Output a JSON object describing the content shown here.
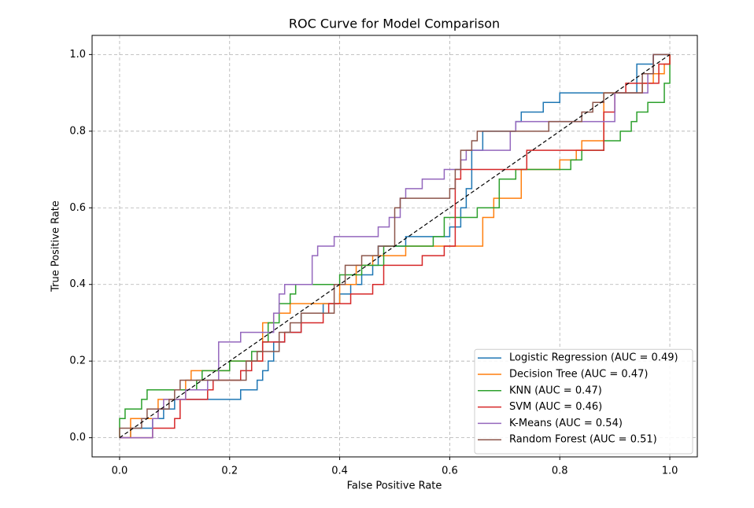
{
  "chart_data": {
    "type": "line",
    "title": "ROC Curve for Model Comparison",
    "x_label": "False Positive Rate",
    "y_label": "True Positive Rate",
    "xlim": [
      -0.05,
      1.05
    ],
    "ylim": [
      -0.05,
      1.05
    ],
    "xticks": [
      {
        "value": 0,
        "label": "0.0"
      },
      0.2,
      0.4,
      0.6,
      0.8,
      {
        "value": 1,
        "label": "1.0"
      }
    ],
    "yticks": [
      {
        "value": 0,
        "label": "0.0"
      },
      0.2,
      0.4,
      0.6,
      0.8,
      {
        "value": 1,
        "label": "1.0"
      }
    ],
    "grid": true,
    "legend": "lower right",
    "reference_line": {
      "x": [
        0,
        1
      ],
      "values": [
        0,
        1
      ],
      "color": "#000000",
      "dashed": true
    },
    "series": [
      {
        "name": "Logistic Regression (AUC = 0.49)",
        "color": "#1f77b4",
        "x": [
          0,
          0.02,
          0.02,
          0.06,
          0.06,
          0.08,
          0.08,
          0.1,
          0.1,
          0.22,
          0.22,
          0.25,
          0.25,
          0.26,
          0.26,
          0.27,
          0.27,
          0.28,
          0.28,
          0.3,
          0.3,
          0.33,
          0.33,
          0.37,
          0.37,
          0.4,
          0.4,
          0.42,
          0.42,
          0.44,
          0.44,
          0.46,
          0.46,
          0.47,
          0.47,
          0.52,
          0.52,
          0.6,
          0.6,
          0.62,
          0.62,
          0.63,
          0.63,
          0.64,
          0.64,
          0.66,
          0.66,
          0.72,
          0.72,
          0.73,
          0.73,
          0.77,
          0.77,
          0.8,
          0.8,
          0.94,
          0.94,
          0.97,
          0.97,
          1
        ],
        "values": [
          0,
          0,
          0.025,
          0.025,
          0.05,
          0.05,
          0.075,
          0.075,
          0.1,
          0.1,
          0.125,
          0.125,
          0.15,
          0.15,
          0.175,
          0.175,
          0.2,
          0.2,
          0.25,
          0.25,
          0.275,
          0.275,
          0.325,
          0.325,
          0.35,
          0.35,
          0.375,
          0.375,
          0.4,
          0.4,
          0.425,
          0.425,
          0.45,
          0.45,
          0.5,
          0.5,
          0.525,
          0.525,
          0.55,
          0.55,
          0.6,
          0.6,
          0.65,
          0.65,
          0.75,
          0.75,
          0.8,
          0.8,
          0.825,
          0.825,
          0.85,
          0.85,
          0.875,
          0.875,
          0.9,
          0.9,
          0.975,
          0.975,
          1,
          1
        ]
      },
      {
        "name": "Decision Tree (AUC = 0.47)",
        "color": "#ff7f0e",
        "x": [
          0,
          0.02,
          0.02,
          0.07,
          0.07,
          0.12,
          0.12,
          0.13,
          0.13,
          0.2,
          0.2,
          0.26,
          0.26,
          0.28,
          0.28,
          0.31,
          0.31,
          0.4,
          0.4,
          0.43,
          0.43,
          0.46,
          0.46,
          0.52,
          0.52,
          0.66,
          0.66,
          0.68,
          0.68,
          0.73,
          0.73,
          0.8,
          0.8,
          0.83,
          0.83,
          0.84,
          0.84,
          0.88,
          0.88,
          0.95,
          0.95,
          0.97,
          0.97,
          0.99,
          0.99,
          1,
          1
        ],
        "values": [
          0,
          0,
          0.05,
          0.05,
          0.1,
          0.1,
          0.15,
          0.15,
          0.175,
          0.175,
          0.2,
          0.2,
          0.3,
          0.3,
          0.325,
          0.325,
          0.35,
          0.35,
          0.4,
          0.4,
          0.45,
          0.45,
          0.475,
          0.475,
          0.5,
          0.5,
          0.575,
          0.575,
          0.625,
          0.625,
          0.7,
          0.7,
          0.725,
          0.725,
          0.75,
          0.75,
          0.775,
          0.775,
          0.9,
          0.9,
          0.925,
          0.925,
          0.95,
          0.95,
          0.975,
          0.975,
          1
        ]
      },
      {
        "name": "KNN (AUC = 0.47)",
        "color": "#2ca02c",
        "x": [
          0,
          0,
          0.01,
          0.01,
          0.04,
          0.04,
          0.05,
          0.05,
          0.14,
          0.14,
          0.15,
          0.15,
          0.2,
          0.2,
          0.24,
          0.24,
          0.26,
          0.26,
          0.27,
          0.27,
          0.29,
          0.29,
          0.31,
          0.31,
          0.32,
          0.32,
          0.4,
          0.4,
          0.44,
          0.44,
          0.48,
          0.48,
          0.57,
          0.57,
          0.59,
          0.59,
          0.65,
          0.65,
          0.69,
          0.69,
          0.72,
          0.72,
          0.82,
          0.82,
          0.84,
          0.84,
          0.88,
          0.88,
          0.91,
          0.91,
          0.93,
          0.93,
          0.94,
          0.94,
          0.96,
          0.96,
          0.99,
          0.99,
          1,
          1
        ],
        "values": [
          0,
          0.05,
          0.05,
          0.075,
          0.075,
          0.1,
          0.1,
          0.125,
          0.125,
          0.15,
          0.15,
          0.175,
          0.175,
          0.2,
          0.2,
          0.225,
          0.225,
          0.25,
          0.25,
          0.3,
          0.3,
          0.35,
          0.35,
          0.375,
          0.375,
          0.4,
          0.4,
          0.425,
          0.425,
          0.45,
          0.45,
          0.5,
          0.5,
          0.525,
          0.525,
          0.575,
          0.575,
          0.6,
          0.6,
          0.675,
          0.675,
          0.7,
          0.7,
          0.725,
          0.725,
          0.75,
          0.75,
          0.775,
          0.775,
          0.8,
          0.8,
          0.825,
          0.825,
          0.85,
          0.85,
          0.875,
          0.875,
          0.925,
          0.925,
          1
        ]
      },
      {
        "name": "SVM (AUC = 0.46)",
        "color": "#d62728",
        "x": [
          0,
          0.06,
          0.06,
          0.1,
          0.1,
          0.11,
          0.11,
          0.16,
          0.16,
          0.17,
          0.17,
          0.22,
          0.22,
          0.24,
          0.24,
          0.26,
          0.26,
          0.3,
          0.3,
          0.33,
          0.33,
          0.37,
          0.37,
          0.38,
          0.38,
          0.42,
          0.42,
          0.46,
          0.46,
          0.48,
          0.48,
          0.55,
          0.55,
          0.59,
          0.59,
          0.61,
          0.61,
          0.62,
          0.62,
          0.74,
          0.74,
          0.88,
          0.88,
          0.9,
          0.9,
          0.92,
          0.92,
          0.98,
          0.98,
          1,
          1
        ],
        "values": [
          0,
          0,
          0.025,
          0.025,
          0.05,
          0.05,
          0.1,
          0.1,
          0.125,
          0.125,
          0.15,
          0.15,
          0.175,
          0.175,
          0.2,
          0.2,
          0.25,
          0.25,
          0.275,
          0.275,
          0.3,
          0.3,
          0.325,
          0.325,
          0.35,
          0.35,
          0.375,
          0.375,
          0.4,
          0.4,
          0.45,
          0.45,
          0.475,
          0.475,
          0.5,
          0.5,
          0.675,
          0.675,
          0.7,
          0.7,
          0.75,
          0.75,
          0.85,
          0.85,
          0.9,
          0.9,
          0.925,
          0.925,
          0.975,
          0.975,
          1
        ]
      },
      {
        "name": "K-Means (AUC = 0.54)",
        "color": "#9467bd",
        "x": [
          0,
          0.06,
          0.06,
          0.07,
          0.07,
          0.08,
          0.08,
          0.12,
          0.12,
          0.16,
          0.16,
          0.18,
          0.18,
          0.22,
          0.22,
          0.28,
          0.28,
          0.29,
          0.29,
          0.3,
          0.3,
          0.35,
          0.35,
          0.36,
          0.36,
          0.39,
          0.39,
          0.47,
          0.47,
          0.49,
          0.49,
          0.51,
          0.51,
          0.52,
          0.52,
          0.55,
          0.55,
          0.59,
          0.59,
          0.62,
          0.62,
          0.63,
          0.63,
          0.71,
          0.71,
          0.72,
          0.72,
          0.9,
          0.9,
          0.96,
          0.96,
          0.97,
          0.97,
          1
        ],
        "values": [
          0,
          0,
          0.05,
          0.05,
          0.075,
          0.075,
          0.1,
          0.1,
          0.125,
          0.125,
          0.15,
          0.15,
          0.25,
          0.25,
          0.275,
          0.275,
          0.325,
          0.325,
          0.375,
          0.375,
          0.4,
          0.4,
          0.475,
          0.475,
          0.5,
          0.5,
          0.525,
          0.525,
          0.55,
          0.55,
          0.575,
          0.575,
          0.625,
          0.625,
          0.65,
          0.65,
          0.675,
          0.675,
          0.7,
          0.7,
          0.725,
          0.725,
          0.75,
          0.75,
          0.8,
          0.8,
          0.825,
          0.825,
          0.9,
          0.9,
          0.95,
          0.95,
          1,
          1
        ]
      },
      {
        "name": "Random Forest (AUC = 0.51)",
        "color": "#8c564b",
        "x": [
          0,
          0,
          0.04,
          0.04,
          0.05,
          0.05,
          0.09,
          0.09,
          0.1,
          0.1,
          0.11,
          0.11,
          0.23,
          0.23,
          0.25,
          0.25,
          0.29,
          0.29,
          0.31,
          0.31,
          0.33,
          0.33,
          0.39,
          0.39,
          0.41,
          0.41,
          0.44,
          0.44,
          0.47,
          0.47,
          0.5,
          0.5,
          0.51,
          0.51,
          0.6,
          0.6,
          0.61,
          0.61,
          0.62,
          0.62,
          0.64,
          0.64,
          0.65,
          0.65,
          0.78,
          0.78,
          0.84,
          0.84,
          0.86,
          0.86,
          0.88,
          0.88,
          0.95,
          0.95,
          0.97,
          0.97,
          1
        ],
        "values": [
          0,
          0.025,
          0.025,
          0.05,
          0.05,
          0.075,
          0.075,
          0.1,
          0.1,
          0.125,
          0.125,
          0.15,
          0.15,
          0.2,
          0.2,
          0.225,
          0.225,
          0.275,
          0.275,
          0.3,
          0.3,
          0.325,
          0.325,
          0.4,
          0.4,
          0.45,
          0.45,
          0.475,
          0.475,
          0.5,
          0.5,
          0.6,
          0.6,
          0.625,
          0.625,
          0.65,
          0.65,
          0.7,
          0.7,
          0.75,
          0.75,
          0.775,
          0.775,
          0.8,
          0.8,
          0.825,
          0.825,
          0.85,
          0.85,
          0.875,
          0.875,
          0.9,
          0.9,
          0.95,
          0.95,
          1,
          1
        ]
      }
    ]
  }
}
